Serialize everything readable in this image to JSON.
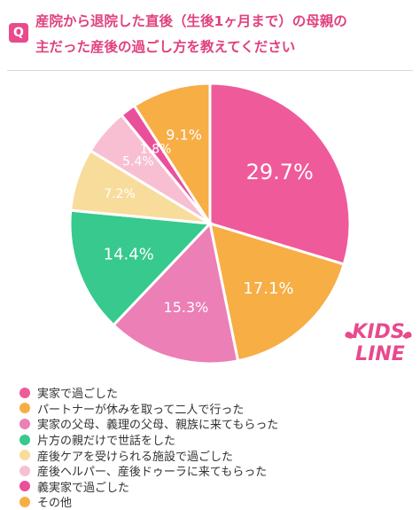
{
  "question": {
    "badge": "Q",
    "text": "産院から退院した直後（生後1ヶ月まで）の母親の\n主だった産後の過ごし方を教えてください"
  },
  "logo": {
    "line1": "KIDS",
    "line2": "LINE"
  },
  "colors": {
    "accent": "#e84a8c",
    "title": "#e0417f"
  },
  "chart_data": {
    "type": "pie",
    "title": "産院から退院した直後（生後1ヶ月まで）の母親の主だった産後の過ごし方を教えてください",
    "start": "top",
    "direction": "clockwise",
    "categories": [
      "実家で過ごした",
      "パートナーが休みを取って二人で行った",
      "実家の父母、義理の父母、親族に来てもらった",
      "片方の親だけで世話をした",
      "産後ケアを受けられる施設で過ごした",
      "産後ヘルパー、産後ドゥーラに来てもらった",
      "義実家で過ごした",
      "その他"
    ],
    "values": [
      29.7,
      17.1,
      15.3,
      14.4,
      7.2,
      5.4,
      1.8,
      9.1
    ],
    "labels": [
      "29.7%",
      "17.1%",
      "15.3%",
      "14.4%",
      "7.2%",
      "5.4%",
      "1.8%",
      "9.1%"
    ],
    "colors": [
      "#ef5a9a",
      "#f6ae45",
      "#eb7fb6",
      "#37c98e",
      "#f8dc9c",
      "#f8bfd2",
      "#ea4f9a",
      "#f6ae45"
    ],
    "label_colors": [
      "#ffffff",
      "#ffffff",
      "#ffffff",
      "#ffffff",
      "#ffffff",
      "#ffffff",
      "#ffffff",
      "#ffffff"
    ],
    "legend_position": "bottom-left"
  }
}
